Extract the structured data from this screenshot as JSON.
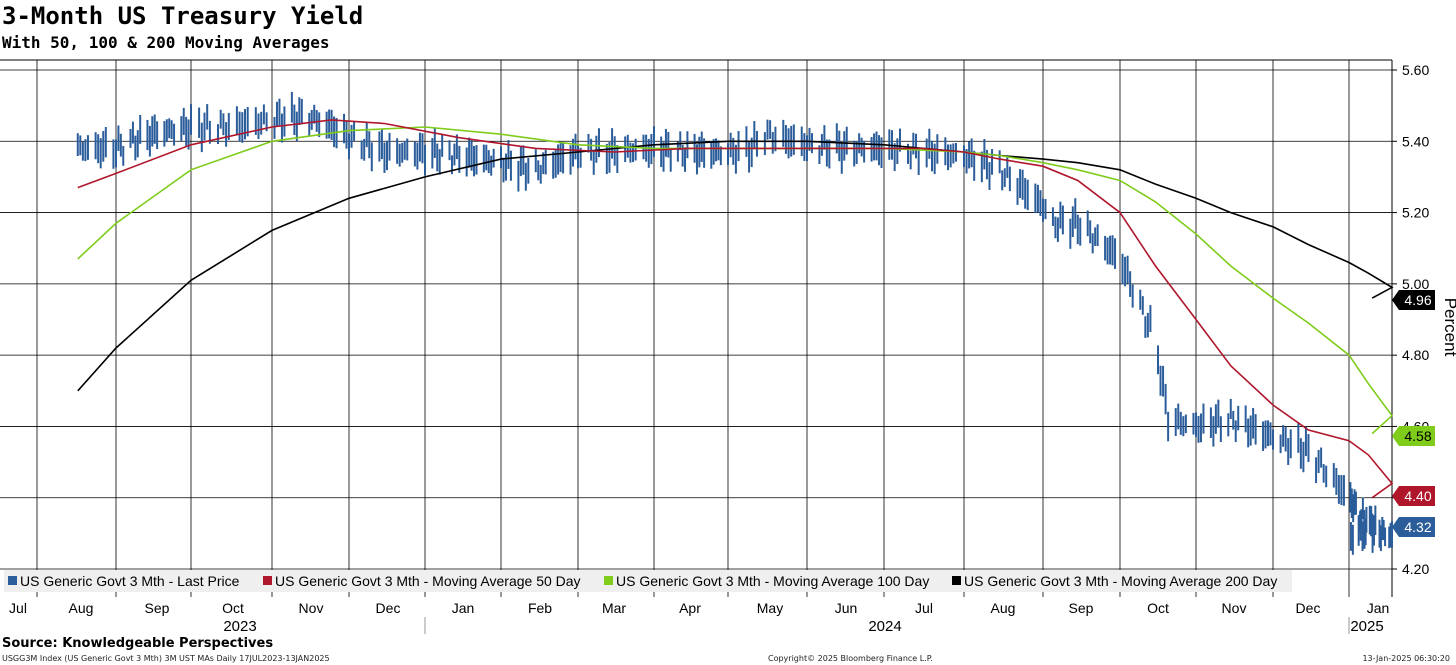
{
  "title": "3-Month US Treasury Yield",
  "subtitle": "With 50, 100 & 200 Moving Averages",
  "source": "Source: Knowledgeable Perspectives",
  "footer": {
    "left": "USGG3M Index (US Generic Govt 3 Mth) 3M UST MAs  Daily 17JUL2023-13JAN2025",
    "center": "Copyright© 2025 Bloomberg Finance L.P.",
    "right": "13-Jan-2025 06:30:20"
  },
  "colors": {
    "price": "#2b5d9b",
    "ma50": "#b0162b",
    "ma100": "#7fcc1b",
    "ma200": "#000000",
    "grid": "#000000"
  },
  "chart_data": {
    "type": "line",
    "ylabel": "Percent",
    "ylim": [
      4.15,
      5.64
    ],
    "y_ticks": [
      "5.60",
      "5.40",
      "5.20",
      "5.00",
      "4.80",
      "4.60",
      "4.40",
      "4.20"
    ],
    "x_months": [
      "Jul",
      "Aug",
      "Sep",
      "Oct",
      "Nov",
      "Dec",
      "Jan",
      "Feb",
      "Mar",
      "Apr",
      "May",
      "Jun",
      "Jul",
      "Aug",
      "Sep",
      "Oct",
      "Nov",
      "Dec",
      "Jan"
    ],
    "x_years": [
      "2023",
      "2024",
      "2025"
    ],
    "grid": true,
    "legend_position": "bottom-left",
    "series": [
      {
        "name": "US Generic Govt 3 Mth - Last Price",
        "color": "#2b5d9b",
        "last_value": "4.32",
        "x": [
          "2023-07-17",
          "2023-08-01",
          "2023-08-15",
          "2023-09-01",
          "2023-09-15",
          "2023-10-01",
          "2023-10-15",
          "2023-10-25",
          "2023-11-01",
          "2023-11-15",
          "2023-12-01",
          "2023-12-15",
          "2024-01-01",
          "2024-01-15",
          "2024-02-01",
          "2024-02-15",
          "2024-03-01",
          "2024-03-15",
          "2024-04-01",
          "2024-04-10",
          "2024-04-15",
          "2024-05-01",
          "2024-05-15",
          "2024-06-01",
          "2024-06-15",
          "2024-07-01",
          "2024-07-15",
          "2024-08-01",
          "2024-08-05",
          "2024-08-15",
          "2024-09-01",
          "2024-09-15",
          "2024-09-20",
          "2024-10-01",
          "2024-10-15",
          "2024-11-01",
          "2024-11-15",
          "2024-12-01",
          "2024-12-15",
          "2025-01-01",
          "2025-01-13"
        ],
        "values": [
          5.38,
          5.38,
          5.42,
          5.44,
          5.44,
          5.46,
          5.47,
          5.44,
          5.41,
          5.37,
          5.37,
          5.36,
          5.34,
          5.32,
          5.37,
          5.37,
          5.38,
          5.37,
          5.37,
          5.38,
          5.42,
          5.39,
          5.38,
          5.38,
          5.37,
          5.36,
          5.32,
          5.22,
          5.17,
          5.17,
          5.07,
          4.84,
          4.62,
          4.6,
          4.62,
          4.57,
          4.53,
          4.4,
          4.32,
          4.29,
          4.32
        ]
      },
      {
        "name": "US Generic Govt 3 Mth - Moving Average 50 Day",
        "color": "#b0162b",
        "last_value": "4.40",
        "x": [
          "2023-07-17",
          "2023-08-01",
          "2023-09-01",
          "2023-10-01",
          "2023-10-25",
          "2023-11-15",
          "2023-12-15",
          "2024-01-15",
          "2024-02-15",
          "2024-03-15",
          "2024-04-15",
          "2024-05-15",
          "2024-06-15",
          "2024-07-01",
          "2024-07-15",
          "2024-08-01",
          "2024-08-15",
          "2024-09-01",
          "2024-09-15",
          "2024-10-01",
          "2024-10-15",
          "2024-11-01",
          "2024-11-15",
          "2024-12-01",
          "2024-12-15",
          "2025-01-01",
          "2025-01-13"
        ],
        "values": [
          5.27,
          5.31,
          5.39,
          5.44,
          5.46,
          5.45,
          5.41,
          5.38,
          5.37,
          5.38,
          5.38,
          5.38,
          5.38,
          5.37,
          5.35,
          5.33,
          5.29,
          5.2,
          5.05,
          4.9,
          4.77,
          4.66,
          4.59,
          4.56,
          4.52,
          4.44,
          4.4
        ]
      },
      {
        "name": "US Generic Govt 3 Mth - Moving Average 100 Day",
        "color": "#7fcc1b",
        "last_value": "4.58",
        "x": [
          "2023-07-17",
          "2023-08-01",
          "2023-09-01",
          "2023-10-01",
          "2023-11-01",
          "2023-12-01",
          "2024-01-01",
          "2024-02-01",
          "2024-03-01",
          "2024-04-01",
          "2024-05-01",
          "2024-06-01",
          "2024-07-01",
          "2024-07-15",
          "2024-08-01",
          "2024-08-15",
          "2024-09-01",
          "2024-09-15",
          "2024-10-01",
          "2024-10-15",
          "2024-11-01",
          "2024-11-15",
          "2024-12-01",
          "2024-12-15",
          "2025-01-01",
          "2025-01-13"
        ],
        "values": [
          5.07,
          5.17,
          5.32,
          5.4,
          5.43,
          5.44,
          5.42,
          5.39,
          5.38,
          5.38,
          5.38,
          5.38,
          5.37,
          5.36,
          5.34,
          5.32,
          5.29,
          5.23,
          5.14,
          5.05,
          4.96,
          4.89,
          4.8,
          4.72,
          4.63,
          4.58
        ]
      },
      {
        "name": "US Generic Govt 3 Mth - Moving Average 200 Day",
        "color": "#000000",
        "last_value": "4.96",
        "x": [
          "2023-07-17",
          "2023-08-01",
          "2023-09-01",
          "2023-10-01",
          "2023-11-01",
          "2023-12-01",
          "2024-01-01",
          "2024-02-01",
          "2024-03-01",
          "2024-04-01",
          "2024-05-01",
          "2024-06-01",
          "2024-07-01",
          "2024-07-15",
          "2024-08-01",
          "2024-08-15",
          "2024-09-01",
          "2024-09-15",
          "2024-10-01",
          "2024-10-15",
          "2024-11-01",
          "2024-11-15",
          "2024-12-01",
          "2024-12-15",
          "2025-01-01",
          "2025-01-13"
        ],
        "values": [
          4.7,
          4.82,
          5.01,
          5.15,
          5.24,
          5.3,
          5.35,
          5.37,
          5.39,
          5.4,
          5.4,
          5.39,
          5.37,
          5.36,
          5.35,
          5.34,
          5.32,
          5.28,
          5.24,
          5.2,
          5.16,
          5.11,
          5.06,
          5.03,
          4.99,
          4.96
        ]
      }
    ]
  }
}
